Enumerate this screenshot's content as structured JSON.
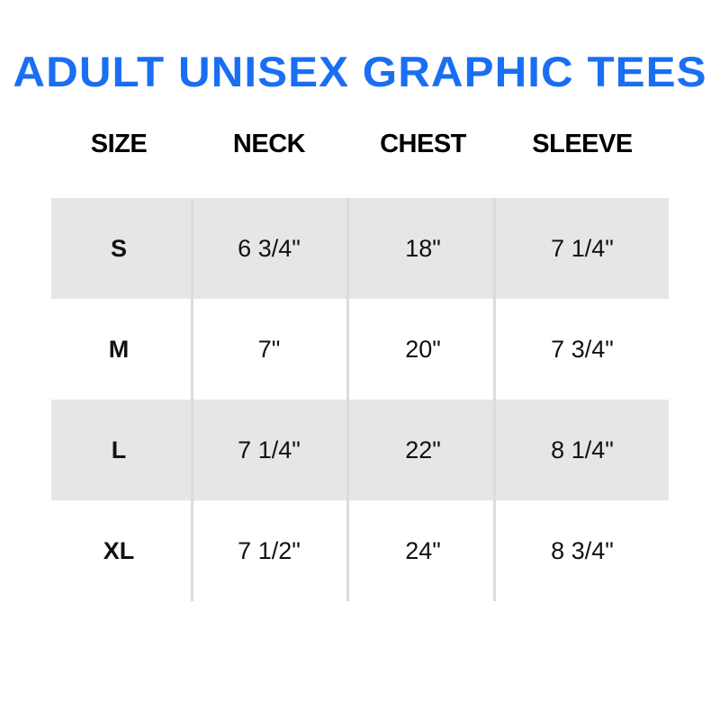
{
  "title": "ADULT UNISEX GRAPHIC TEES",
  "accent_color": "#1a6ef2",
  "headers": [
    "SIZE",
    "NECK",
    "CHEST",
    "SLEEVE"
  ],
  "rows": [
    {
      "size": "S",
      "neck": "6 3/4\"",
      "chest": "18\"",
      "sleeve": "7 1/4\""
    },
    {
      "size": "M",
      "neck": "7\"",
      "chest": "20\"",
      "sleeve": "7 3/4\""
    },
    {
      "size": "L",
      "neck": "7 1/4\"",
      "chest": "22\"",
      "sleeve": "8 1/4\""
    },
    {
      "size": "XL",
      "neck": "7 1/2\"",
      "chest": "24\"",
      "sleeve": "8 3/4\""
    }
  ]
}
